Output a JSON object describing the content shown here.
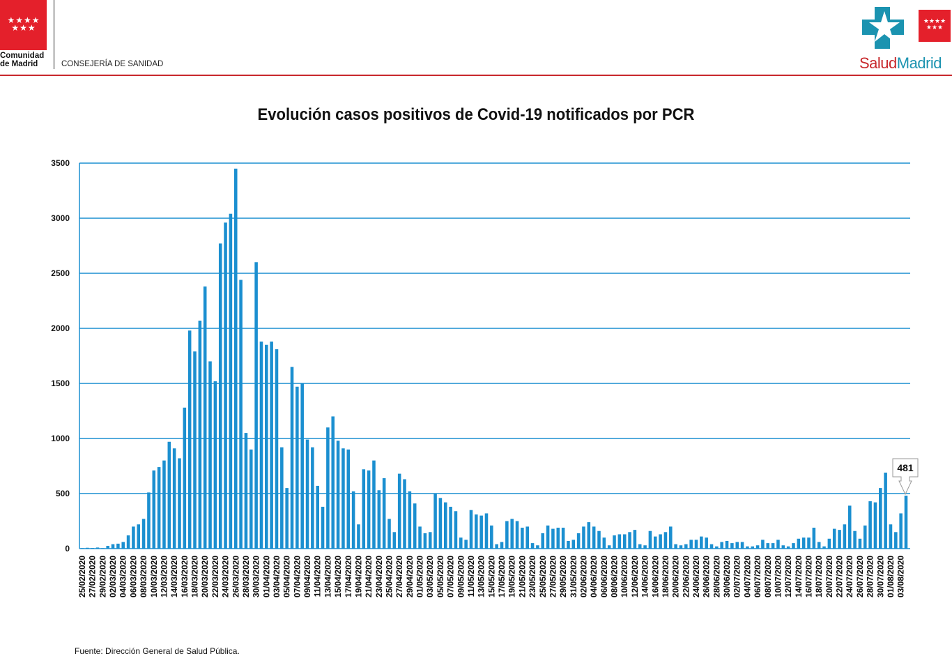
{
  "header": {
    "left_logo": {
      "stars": "★★★★\n★★★",
      "name_line1": "Comunidad",
      "name_line2": "de Madrid"
    },
    "department": "CONSEJERÍA DE SANIDAD",
    "right_logo": {
      "part1": "Salud",
      "part2": "Madrid"
    },
    "colors": {
      "brand_red": "#e4202b",
      "rule_red": "#c8282c",
      "salud_teal": "#1b93b0"
    }
  },
  "footer": {
    "source": "Fuente: Dirección General de Salud Pública."
  },
  "chart_data": {
    "type": "bar",
    "title": "Evolución casos positivos de Covid-19 notificados por PCR",
    "xlabel": "",
    "ylabel": "",
    "ylim": [
      0,
      3500
    ],
    "yticks": [
      0,
      500,
      1000,
      1500,
      2000,
      2500,
      3000,
      3500
    ],
    "grid": true,
    "bar_color": "#1b8fd0",
    "start_date": "25/02/2020",
    "end_date": "04/08/2020",
    "label_every": 2,
    "tick_labels": [
      "25/02/2020",
      "27/02/2020",
      "29/02/2020",
      "02/03/2020",
      "04/03/2020",
      "06/03/2020",
      "08/03/2020",
      "10/03/2020",
      "12/03/2020",
      "14/03/2020",
      "16/03/2020",
      "18/03/2020",
      "20/03/2020",
      "22/03/2020",
      "24/03/2020",
      "26/03/2020",
      "28/03/2020",
      "30/03/2020",
      "01/04/2020",
      "03/04/2020",
      "05/04/2020",
      "07/04/2020",
      "09/04/2020",
      "11/04/2020",
      "13/04/2020",
      "15/04/2020",
      "17/04/2020",
      "19/04/2020",
      "21/04/2020",
      "23/04/2020",
      "25/04/2020",
      "27/04/2020",
      "29/04/2020",
      "01/05/2020",
      "03/05/2020",
      "05/05/2020",
      "07/05/2020",
      "09/05/2020",
      "11/05/2020",
      "13/05/2020",
      "15/05/2020",
      "17/05/2020",
      "19/05/2020",
      "21/05/2020",
      "23/05/2020",
      "25/05/2020",
      "27/05/2020",
      "29/05/2020",
      "31/05/2020",
      "02/06/2020",
      "04/06/2020",
      "06/06/2020",
      "08/06/2020",
      "10/06/2020",
      "12/06/2020",
      "14/06/2020",
      "16/06/2020",
      "18/06/2020",
      "20/06/2020",
      "22/06/2020",
      "24/06/2020",
      "26/06/2020",
      "28/06/2020",
      "30/06/2020",
      "02/07/2020",
      "04/07/2020",
      "06/07/2020",
      "08/07/2020",
      "10/07/2020",
      "12/07/2020",
      "14/07/2020",
      "16/07/2020",
      "18/07/2020",
      "20/07/2020",
      "22/07/2020",
      "24/07/2020",
      "26/07/2020",
      "28/07/2020",
      "30/07/2020",
      "01/08/2020",
      "03/08/2020"
    ],
    "values": [
      5,
      8,
      6,
      10,
      5,
      25,
      40,
      45,
      60,
      120,
      200,
      220,
      270,
      510,
      710,
      740,
      800,
      970,
      910,
      820,
      1280,
      1980,
      1790,
      2070,
      2380,
      1700,
      1520,
      2770,
      2960,
      3040,
      3450,
      2440,
      1050,
      900,
      2600,
      1880,
      1850,
      1880,
      1810,
      920,
      550,
      1650,
      1470,
      1500,
      990,
      920,
      570,
      380,
      1100,
      1200,
      980,
      910,
      900,
      520,
      220,
      720,
      710,
      800,
      530,
      640,
      270,
      150,
      680,
      630,
      520,
      410,
      200,
      140,
      150,
      500,
      460,
      420,
      380,
      340,
      100,
      80,
      350,
      310,
      300,
      320,
      210,
      40,
      60,
      250,
      270,
      250,
      190,
      200,
      50,
      30,
      140,
      210,
      180,
      190,
      190,
      70,
      80,
      140,
      200,
      240,
      200,
      160,
      100,
      30,
      120,
      130,
      130,
      150,
      170,
      40,
      30,
      160,
      110,
      130,
      150,
      200,
      40,
      30,
      40,
      80,
      80,
      110,
      100,
      40,
      20,
      60,
      70,
      50,
      60,
      60,
      20,
      20,
      30,
      80,
      50,
      50,
      80,
      30,
      20,
      50,
      90,
      100,
      100,
      190,
      60,
      20,
      90,
      180,
      170,
      220,
      390,
      160,
      90,
      210,
      430,
      420,
      550,
      690,
      220,
      150,
      320,
      481
    ],
    "annotation": {
      "label": "481",
      "target": "04/08/2020"
    }
  }
}
